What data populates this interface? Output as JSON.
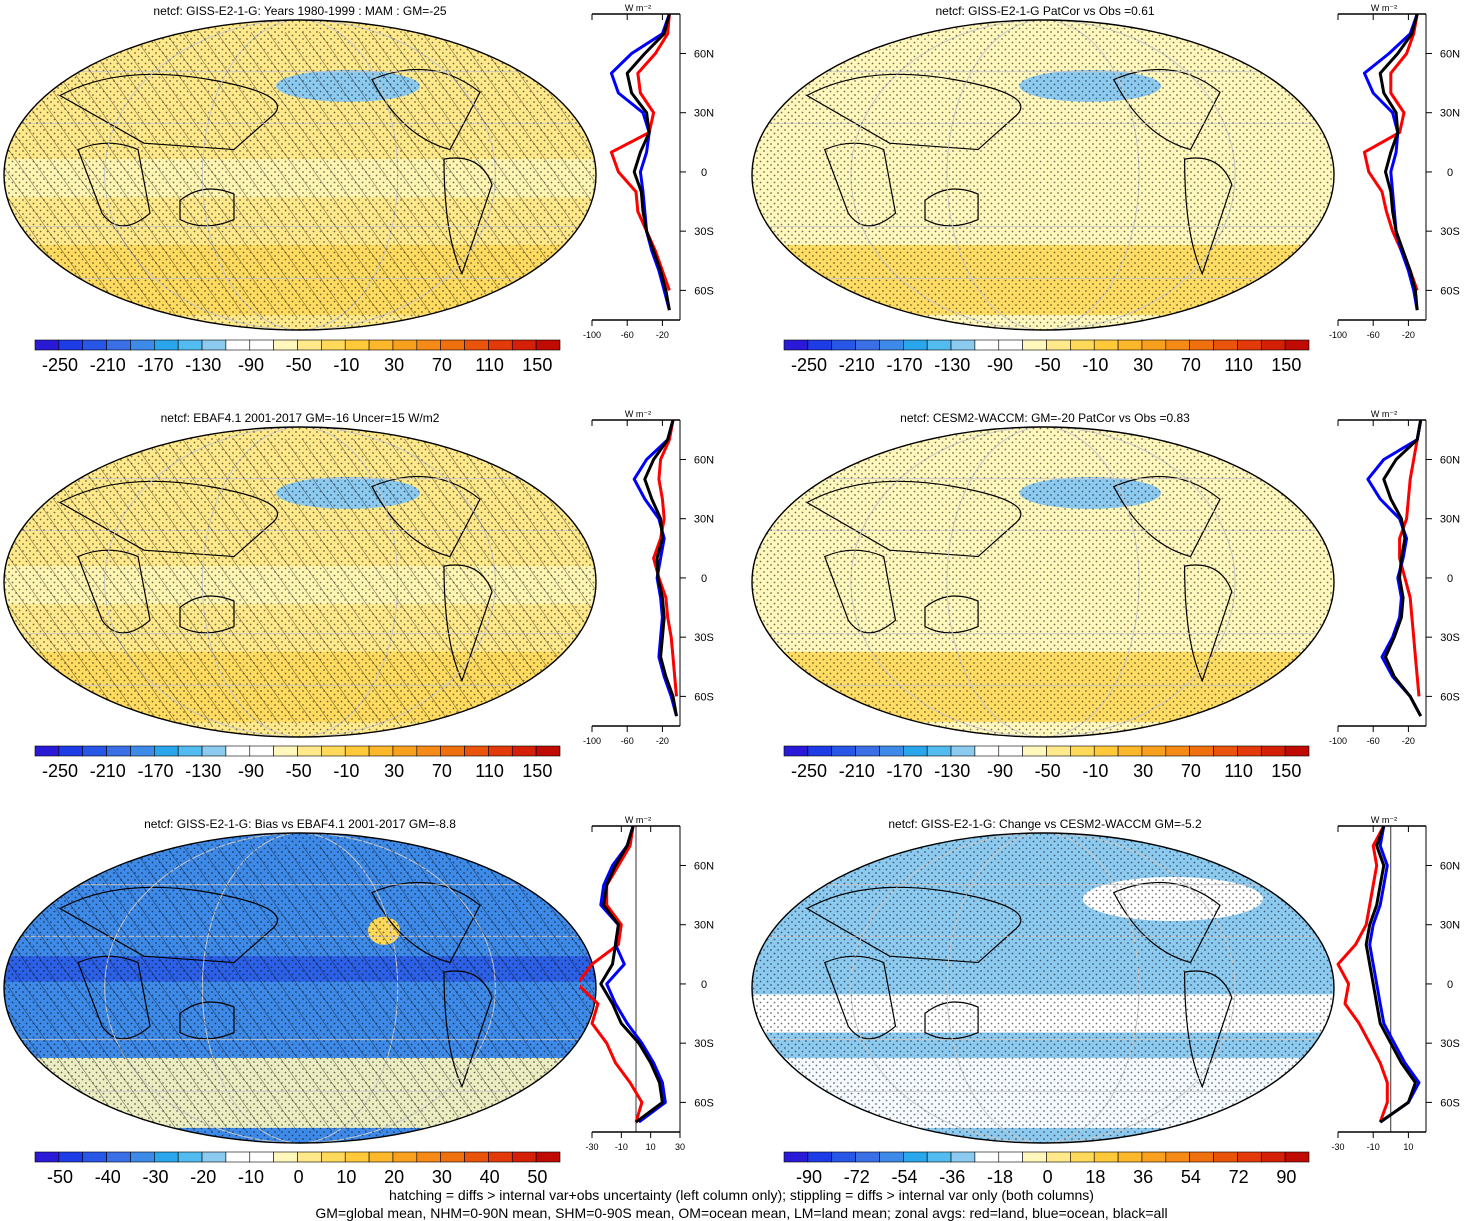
{
  "colorbars": {
    "main": {
      "labels": [
        "-250",
        "-210",
        "-170",
        "-130",
        "-90",
        "-50",
        "-10",
        "30",
        "70",
        "110",
        "150"
      ],
      "colors": [
        "#2a1ad8",
        "#1e3ce6",
        "#2856e6",
        "#3a6fe6",
        "#3e8ae8",
        "#2aa6ec",
        "#52bcf0",
        "#8ccaf0",
        "#ffffff",
        "#ffffff",
        "#fff7bc",
        "#ffe98a",
        "#ffd95a",
        "#ffc93a",
        "#fdb72a",
        "#f9a11e",
        "#f58a16",
        "#f0700e",
        "#ea540a",
        "#e23a08",
        "#d42006",
        "#c00b04"
      ]
    },
    "bias": {
      "labels": [
        "-50",
        "-40",
        "-30",
        "-20",
        "-10",
        "0",
        "10",
        "20",
        "30",
        "40",
        "50"
      ],
      "colors": [
        "#2a1ad8",
        "#1e3ce6",
        "#2856e6",
        "#3a6fe6",
        "#3e8ae8",
        "#2aa6ec",
        "#52bcf0",
        "#8ccaf0",
        "#ffffff",
        "#ffffff",
        "#fff7bc",
        "#ffe98a",
        "#ffd95a",
        "#ffc93a",
        "#fdb72a",
        "#f9a11e",
        "#f58a16",
        "#f0700e",
        "#ea540a",
        "#e23a08",
        "#d42006",
        "#c00b04"
      ]
    },
    "change": {
      "labels": [
        "-90",
        "-72",
        "-54",
        "-36",
        "-18",
        "0",
        "18",
        "36",
        "54",
        "72",
        "90"
      ],
      "colors": [
        "#2a1ad8",
        "#1e3ce6",
        "#2856e6",
        "#3a6fe6",
        "#3e8ae8",
        "#2aa6ec",
        "#52bcf0",
        "#8ccaf0",
        "#ffffff",
        "#ffffff",
        "#fff7bc",
        "#ffe98a",
        "#ffd95a",
        "#ffc93a",
        "#fdb72a",
        "#f9a11e",
        "#f58a16",
        "#f0700e",
        "#ea540a",
        "#e23a08",
        "#d42006",
        "#c00b04"
      ]
    }
  },
  "lat_labels": [
    "60N",
    "30N",
    "0",
    "30S",
    "60S"
  ],
  "lat_values": [
    60,
    30,
    0,
    -30,
    -60
  ],
  "unit_label": "W m⁻²",
  "panels": [
    {
      "title": "netcf: GISS-E2-1-G: Years 1980-1999 : MAM : GM=-25",
      "fill": "#ffe98a",
      "hatch": true,
      "stipple": true,
      "bar": "main",
      "xticks": [
        "-100",
        "-60",
        "-20"
      ],
      "xrange": [
        -100,
        0
      ]
    },
    {
      "title": "netcf: GISS-E2-1-G PatCor vs Obs =0.61",
      "fill": "#fff7bc",
      "hatch": false,
      "stipple": true,
      "bar": "main",
      "xticks": [
        "-100",
        "-60",
        "-20"
      ],
      "xrange": [
        -100,
        0
      ]
    },
    {
      "title": "netcf: EBAF4.1 2001-2017 GM=-16 Uncer=15 W/m2",
      "fill": "#ffe98a",
      "hatch": true,
      "stipple": true,
      "bar": "main",
      "xticks": [
        "-100",
        "-60",
        "-20"
      ],
      "xrange": [
        -100,
        0
      ]
    },
    {
      "title": "netcf: CESM2-WACCM: GM=-20 PatCor vs Obs =0.83",
      "fill": "#fff7bc",
      "hatch": false,
      "stipple": true,
      "bar": "main",
      "xticks": [
        "-100",
        "-60",
        "-20"
      ],
      "xrange": [
        -100,
        0
      ]
    },
    {
      "title": "netcf: GISS-E2-1-G: Bias vs EBAF4.1 2001-2017 GM=-8.8",
      "fill": "#3e8ae8",
      "hatch": true,
      "stipple": true,
      "bar": "bias",
      "xticks": [
        "-30",
        "-10",
        "10",
        "30"
      ],
      "xrange": [
        -30,
        30
      ]
    },
    {
      "title": "netcf: GISS-E2-1-G: Change vs CESM2-WACCM GM=-5.2",
      "fill": "#8ccaf0",
      "hatch": false,
      "stipple": true,
      "bar": "change",
      "xticks": [
        "-30",
        "-10",
        "10"
      ],
      "xrange": [
        -30,
        20
      ]
    }
  ],
  "chart_data": [
    {
      "type": "line",
      "title": "netcf: GISS-E2-1-G: Years 1980-1999 : MAM : GM=-25",
      "ylabel": "W m-2",
      "xlim": [
        -100,
        0
      ],
      "ylim": [
        -75,
        80
      ],
      "series": [
        {
          "name": "land",
          "color": "#ff0000",
          "lat": [
            80,
            70,
            60,
            50,
            40,
            30,
            20,
            10,
            0,
            -10,
            -20,
            -30,
            -40,
            -50,
            -60
          ],
          "values": [
            -12,
            -14,
            -28,
            -48,
            -45,
            -30,
            -35,
            -78,
            -70,
            -50,
            -48,
            -38,
            -28,
            -20,
            -12
          ]
        },
        {
          "name": "ocean",
          "color": "#0000ff",
          "lat": [
            80,
            70,
            60,
            50,
            40,
            30,
            20,
            10,
            0,
            -10,
            -20,
            -30,
            -40,
            -50,
            -60,
            -70
          ],
          "values": [
            -12,
            -20,
            -55,
            -78,
            -70,
            -42,
            -35,
            -38,
            -45,
            -42,
            -40,
            -38,
            -32,
            -24,
            -18,
            -12
          ]
        },
        {
          "name": "all",
          "color": "#000000",
          "lat": [
            80,
            70,
            60,
            50,
            40,
            30,
            20,
            10,
            0,
            -10,
            -20,
            -30,
            -40,
            -50,
            -60,
            -70
          ],
          "values": [
            -12,
            -18,
            -40,
            -60,
            -55,
            -38,
            -35,
            -45,
            -52,
            -44,
            -42,
            -38,
            -30,
            -22,
            -16,
            -12
          ]
        }
      ]
    },
    {
      "type": "line",
      "title": "netcf: GISS-E2-1-G PatCor vs Obs =0.61",
      "ylabel": "W m-2",
      "xlim": [
        -100,
        0
      ],
      "ylim": [
        -75,
        80
      ],
      "series": [
        {
          "name": "land",
          "color": "#ff0000",
          "lat": [
            80,
            70,
            60,
            50,
            40,
            30,
            20,
            10,
            0,
            -10,
            -20,
            -30,
            -40,
            -50,
            -60
          ],
          "values": [
            -10,
            -14,
            -22,
            -40,
            -40,
            -25,
            -30,
            -70,
            -65,
            -50,
            -45,
            -38,
            -28,
            -18,
            -10
          ]
        },
        {
          "name": "ocean",
          "color": "#0000ff",
          "lat": [
            80,
            70,
            60,
            50,
            40,
            30,
            20,
            10,
            0,
            -10,
            -20,
            -30,
            -40,
            -50,
            -60,
            -70
          ],
          "values": [
            -10,
            -18,
            -42,
            -70,
            -60,
            -38,
            -32,
            -34,
            -40,
            -38,
            -36,
            -34,
            -28,
            -20,
            -14,
            -10
          ]
        },
        {
          "name": "all",
          "color": "#000000",
          "lat": [
            80,
            70,
            60,
            50,
            40,
            30,
            20,
            10,
            0,
            -10,
            -20,
            -30,
            -40,
            -50,
            -60,
            -70
          ],
          "values": [
            -10,
            -16,
            -32,
            -52,
            -48,
            -34,
            -32,
            -40,
            -46,
            -40,
            -38,
            -34,
            -26,
            -18,
            -12,
            -10
          ]
        }
      ]
    },
    {
      "type": "line",
      "title": "netcf: EBAF4.1 2001-2017 GM=-16 Uncer=15 W/m2",
      "ylabel": "W m-2",
      "xlim": [
        -100,
        0
      ],
      "ylim": [
        -75,
        80
      ],
      "series": [
        {
          "name": "land",
          "color": "#ff0000",
          "lat": [
            80,
            70,
            60,
            50,
            40,
            30,
            20,
            10,
            0,
            -10,
            -20,
            -30,
            -40,
            -50,
            -60
          ],
          "values": [
            -8,
            -12,
            -22,
            -24,
            -20,
            -18,
            -22,
            -30,
            -24,
            -16,
            -14,
            -10,
            -8,
            -6,
            -4
          ]
        },
        {
          "name": "ocean",
          "color": "#0000ff",
          "lat": [
            80,
            70,
            60,
            50,
            40,
            30,
            20,
            10,
            0,
            -10,
            -20,
            -30,
            -40,
            -50,
            -60,
            -70
          ],
          "values": [
            -8,
            -14,
            -38,
            -52,
            -40,
            -24,
            -18,
            -22,
            -26,
            -22,
            -20,
            -22,
            -24,
            -18,
            -10,
            -4
          ]
        },
        {
          "name": "all",
          "color": "#000000",
          "lat": [
            80,
            70,
            60,
            50,
            40,
            30,
            20,
            10,
            0,
            -10,
            -20,
            -30,
            -40,
            -50,
            -60,
            -70
          ],
          "values": [
            -8,
            -14,
            -30,
            -40,
            -32,
            -22,
            -20,
            -26,
            -25,
            -20,
            -18,
            -20,
            -22,
            -16,
            -8,
            -4
          ]
        }
      ]
    },
    {
      "type": "line",
      "title": "netcf: CESM2-WACCM: GM=-20 PatCor vs Obs =0.83",
      "ylabel": "W m-2",
      "xlim": [
        -100,
        0
      ],
      "ylim": [
        -75,
        80
      ],
      "series": [
        {
          "name": "land",
          "color": "#ff0000",
          "lat": [
            80,
            70,
            60,
            50,
            40,
            30,
            20,
            10,
            0,
            -10,
            -20,
            -30,
            -40,
            -50,
            -60
          ],
          "values": [
            -6,
            -10,
            -14,
            -18,
            -20,
            -22,
            -30,
            -30,
            -24,
            -18,
            -16,
            -14,
            -12,
            -10,
            -8
          ]
        },
        {
          "name": "ocean",
          "color": "#0000ff",
          "lat": [
            80,
            70,
            60,
            50,
            40,
            30,
            20,
            10,
            0,
            -10,
            -20,
            -30,
            -40,
            -50,
            -60,
            -70
          ],
          "values": [
            -6,
            -10,
            -48,
            -66,
            -52,
            -30,
            -22,
            -26,
            -32,
            -28,
            -30,
            -38,
            -50,
            -38,
            -18,
            -6
          ]
        },
        {
          "name": "all",
          "color": "#000000",
          "lat": [
            80,
            70,
            60,
            50,
            40,
            30,
            20,
            10,
            0,
            -10,
            -20,
            -30,
            -40,
            -50,
            -60,
            -70
          ],
          "values": [
            -6,
            -10,
            -34,
            -48,
            -40,
            -28,
            -24,
            -28,
            -30,
            -26,
            -28,
            -36,
            -46,
            -36,
            -18,
            -6
          ]
        }
      ]
    },
    {
      "type": "line",
      "title": "netcf: GISS-E2-1-G: Bias vs EBAF4.1 2001-2017 GM=-8.8",
      "ylabel": "W m-2",
      "xlim": [
        -30,
        30
      ],
      "ylim": [
        -75,
        80
      ],
      "series": [
        {
          "name": "land",
          "color": "#ff0000",
          "lat": [
            80,
            70,
            60,
            50,
            40,
            30,
            20,
            10,
            0,
            -10,
            -20,
            -30,
            -40,
            -50,
            -60,
            -70
          ],
          "values": [
            -2,
            -4,
            -12,
            -20,
            -20,
            -10,
            -12,
            -30,
            -40,
            -26,
            -30,
            -20,
            -14,
            -4,
            4,
            0
          ]
        },
        {
          "name": "ocean",
          "color": "#0000ff",
          "lat": [
            80,
            70,
            60,
            50,
            40,
            30,
            20,
            10,
            0,
            -10,
            -20,
            -30,
            -40,
            -50,
            -60,
            -70
          ],
          "values": [
            -2,
            -6,
            -16,
            -22,
            -24,
            -12,
            -14,
            -8,
            -20,
            -14,
            -6,
            4,
            12,
            18,
            20,
            2
          ]
        },
        {
          "name": "all",
          "color": "#000000",
          "lat": [
            80,
            70,
            60,
            50,
            40,
            30,
            20,
            10,
            0,
            -10,
            -20,
            -30,
            -40,
            -50,
            -60,
            -70
          ],
          "values": [
            -2,
            -6,
            -14,
            -20,
            -22,
            -12,
            -14,
            -16,
            -24,
            -16,
            -10,
            2,
            10,
            16,
            18,
            0
          ]
        }
      ]
    },
    {
      "type": "line",
      "title": "netcf: GISS-E2-1-G: Change vs CESM2-WACCM GM=-5.2",
      "ylabel": "W m-2",
      "xlim": [
        -30,
        20
      ],
      "ylim": [
        -75,
        80
      ],
      "series": [
        {
          "name": "land",
          "color": "#ff0000",
          "lat": [
            80,
            70,
            60,
            50,
            40,
            30,
            20,
            10,
            0,
            -10,
            -20,
            -30,
            -40,
            -50,
            -60,
            -70
          ],
          "values": [
            -4,
            -10,
            -8,
            -10,
            -12,
            -14,
            -20,
            -30,
            -24,
            -26,
            -18,
            -12,
            -6,
            -2,
            -2,
            -6
          ]
        },
        {
          "name": "ocean",
          "color": "#0000ff",
          "lat": [
            80,
            70,
            60,
            50,
            40,
            30,
            20,
            10,
            0,
            -10,
            -20,
            -30,
            -40,
            -50,
            -60,
            -70
          ],
          "values": [
            -4,
            -6,
            -2,
            -4,
            -6,
            -10,
            -12,
            -10,
            -8,
            -6,
            -4,
            2,
            8,
            16,
            10,
            -6
          ]
        },
        {
          "name": "all",
          "color": "#000000",
          "lat": [
            80,
            70,
            60,
            50,
            40,
            30,
            20,
            10,
            0,
            -10,
            -20,
            -30,
            -40,
            -50,
            -60,
            -70
          ],
          "values": [
            -4,
            -8,
            -4,
            -6,
            -8,
            -12,
            -14,
            -12,
            -10,
            -8,
            -6,
            0,
            6,
            14,
            10,
            -6
          ]
        }
      ]
    }
  ],
  "footer": {
    "line1": "hatching = diffs > internal var+obs uncertainty (left column only); stippling = diffs > internal var only (both columns)",
    "line2": "GM=global mean, NHM=0-90N mean, SHM=0-90S mean, OM=ocean mean, LM=land mean; zonal avgs: red=land, blue=ocean, black=all"
  }
}
